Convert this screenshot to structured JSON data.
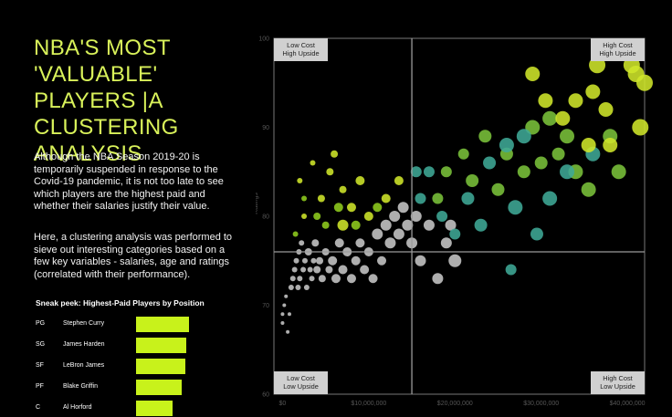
{
  "title": "NBA'S MOST 'VALUABLE' PLAYERS |A CLUSTERING ANALYSIS",
  "description": [
    "Although the NBA Season 2019-20 is temporarily suspended in response to the Covid-19 pandemic, it is not too late to see which players are the highest paid and whether their salaries justify their value.",
    "Here, a clustering analysis was performed to sieve out interesting categories based on a few key variables - salaries, age and ratings (correlated with their performance)."
  ],
  "sneak_peek": {
    "title": "Sneak peek: Highest-Paid Players by Position",
    "rows": [
      {
        "position": "PG",
        "player": "Stephen Curry",
        "value": 40231758
      },
      {
        "position": "SG",
        "player": "James Harden",
        "value": 38199000
      },
      {
        "position": "SF",
        "player": "LeBron James",
        "value": 37436858
      },
      {
        "position": "PF",
        "player": "Blake Griffin",
        "value": 34449964
      },
      {
        "position": "C",
        "player": "Al Horford",
        "value": 28000000
      }
    ],
    "bar_color": "#c8f21b"
  },
  "quadrants": {
    "top_left": [
      "Low Cost",
      "High Upside"
    ],
    "top_right": [
      "High Cost",
      "High Upside"
    ],
    "bottom_left": [
      "Low Cost",
      "Low Upside"
    ],
    "bottom_right": [
      "High Cost",
      "Low Upside"
    ]
  },
  "chart_data": {
    "type": "scatter",
    "title": "",
    "xlabel": "",
    "ylabel": "Ratings",
    "xlim": [
      -1000000,
      42000000
    ],
    "ylim": [
      60,
      100
    ],
    "x_ticks": [
      0,
      10000000,
      20000000,
      30000000,
      40000000
    ],
    "x_tick_labels": [
      "$0",
      "$10,000,000",
      "$20,000,000",
      "$30,000,000",
      "$40,000,000"
    ],
    "y_ticks": [
      60,
      70,
      80,
      90,
      100
    ],
    "reference_lines": {
      "x": 15000000,
      "y": 76
    },
    "grid": false,
    "cluster_colors": {
      "1": "#cfe62a",
      "2": "#8fcc1e",
      "3": "#3fa896",
      "4": "#7ac23a",
      "5": "#c6c6c6"
    },
    "points": [
      {
        "x": 0,
        "y": 68,
        "size": 2,
        "cluster": 5
      },
      {
        "x": 0,
        "y": 69,
        "size": 2,
        "cluster": 5
      },
      {
        "x": 200000,
        "y": 70,
        "size": 2,
        "cluster": 5
      },
      {
        "x": 400000,
        "y": 71,
        "size": 2,
        "cluster": 5
      },
      {
        "x": 600000,
        "y": 67,
        "size": 2,
        "cluster": 5
      },
      {
        "x": 800000,
        "y": 69,
        "size": 2,
        "cluster": 5
      },
      {
        "x": 1000000,
        "y": 72,
        "size": 3,
        "cluster": 5
      },
      {
        "x": 1200000,
        "y": 73,
        "size": 3,
        "cluster": 5
      },
      {
        "x": 1400000,
        "y": 74,
        "size": 3,
        "cluster": 5
      },
      {
        "x": 1600000,
        "y": 75,
        "size": 3,
        "cluster": 5
      },
      {
        "x": 1800000,
        "y": 72,
        "size": 3,
        "cluster": 5
      },
      {
        "x": 1900000,
        "y": 76,
        "size": 3,
        "cluster": 5
      },
      {
        "x": 2000000,
        "y": 73,
        "size": 3,
        "cluster": 5
      },
      {
        "x": 2200000,
        "y": 77,
        "size": 3,
        "cluster": 5
      },
      {
        "x": 2400000,
        "y": 74,
        "size": 3,
        "cluster": 5
      },
      {
        "x": 2600000,
        "y": 75,
        "size": 3,
        "cluster": 5
      },
      {
        "x": 2800000,
        "y": 72,
        "size": 3,
        "cluster": 5
      },
      {
        "x": 3000000,
        "y": 76,
        "size": 4,
        "cluster": 5
      },
      {
        "x": 3200000,
        "y": 74,
        "size": 3,
        "cluster": 5
      },
      {
        "x": 3400000,
        "y": 73,
        "size": 3,
        "cluster": 5
      },
      {
        "x": 3600000,
        "y": 75,
        "size": 3,
        "cluster": 5
      },
      {
        "x": 3800000,
        "y": 77,
        "size": 4,
        "cluster": 5
      },
      {
        "x": 4000000,
        "y": 74,
        "size": 4,
        "cluster": 5
      },
      {
        "x": 4300000,
        "y": 75,
        "size": 4,
        "cluster": 5
      },
      {
        "x": 4600000,
        "y": 73,
        "size": 4,
        "cluster": 5
      },
      {
        "x": 5000000,
        "y": 76,
        "size": 4,
        "cluster": 5
      },
      {
        "x": 5400000,
        "y": 74,
        "size": 4,
        "cluster": 5
      },
      {
        "x": 5800000,
        "y": 75,
        "size": 5,
        "cluster": 5
      },
      {
        "x": 6200000,
        "y": 73,
        "size": 5,
        "cluster": 5
      },
      {
        "x": 6600000,
        "y": 77,
        "size": 5,
        "cluster": 5
      },
      {
        "x": 7000000,
        "y": 74,
        "size": 5,
        "cluster": 5
      },
      {
        "x": 7500000,
        "y": 76,
        "size": 5,
        "cluster": 5
      },
      {
        "x": 8000000,
        "y": 73,
        "size": 5,
        "cluster": 5
      },
      {
        "x": 8500000,
        "y": 75,
        "size": 5,
        "cluster": 5
      },
      {
        "x": 9000000,
        "y": 77,
        "size": 5,
        "cluster": 5
      },
      {
        "x": 9500000,
        "y": 74,
        "size": 5,
        "cluster": 5
      },
      {
        "x": 10000000,
        "y": 76,
        "size": 5,
        "cluster": 5
      },
      {
        "x": 10500000,
        "y": 73,
        "size": 5,
        "cluster": 5
      },
      {
        "x": 11000000,
        "y": 78,
        "size": 6,
        "cluster": 5
      },
      {
        "x": 11500000,
        "y": 75,
        "size": 5,
        "cluster": 5
      },
      {
        "x": 12000000,
        "y": 79,
        "size": 6,
        "cluster": 5
      },
      {
        "x": 12500000,
        "y": 77,
        "size": 6,
        "cluster": 5
      },
      {
        "x": 13000000,
        "y": 80,
        "size": 6,
        "cluster": 5
      },
      {
        "x": 13500000,
        "y": 78,
        "size": 6,
        "cluster": 5
      },
      {
        "x": 14000000,
        "y": 81,
        "size": 6,
        "cluster": 5
      },
      {
        "x": 14500000,
        "y": 79,
        "size": 6,
        "cluster": 5
      },
      {
        "x": 15000000,
        "y": 77,
        "size": 6,
        "cluster": 5
      },
      {
        "x": 15500000,
        "y": 80,
        "size": 6,
        "cluster": 5
      },
      {
        "x": 16000000,
        "y": 75,
        "size": 6,
        "cluster": 5
      },
      {
        "x": 17000000,
        "y": 79,
        "size": 6,
        "cluster": 5
      },
      {
        "x": 18000000,
        "y": 73,
        "size": 6,
        "cluster": 5
      },
      {
        "x": 19000000,
        "y": 77,
        "size": 6,
        "cluster": 5
      },
      {
        "x": 20000000,
        "y": 75,
        "size": 7,
        "cluster": 5
      },
      {
        "x": 19500000,
        "y": 79,
        "size": 6,
        "cluster": 5
      },
      {
        "x": 2500000,
        "y": 80,
        "size": 3,
        "cluster": 1
      },
      {
        "x": 2000000,
        "y": 84,
        "size": 3,
        "cluster": 1
      },
      {
        "x": 3500000,
        "y": 86,
        "size": 3,
        "cluster": 1
      },
      {
        "x": 4500000,
        "y": 82,
        "size": 4,
        "cluster": 1
      },
      {
        "x": 5500000,
        "y": 85,
        "size": 4,
        "cluster": 1
      },
      {
        "x": 6000000,
        "y": 87,
        "size": 4,
        "cluster": 1
      },
      {
        "x": 7000000,
        "y": 83,
        "size": 4,
        "cluster": 1
      },
      {
        "x": 8000000,
        "y": 81,
        "size": 5,
        "cluster": 1
      },
      {
        "x": 9000000,
        "y": 84,
        "size": 5,
        "cluster": 1
      },
      {
        "x": 10000000,
        "y": 80,
        "size": 5,
        "cluster": 1
      },
      {
        "x": 12000000,
        "y": 82,
        "size": 5,
        "cluster": 1
      },
      {
        "x": 13500000,
        "y": 84,
        "size": 5,
        "cluster": 1
      },
      {
        "x": 7000000,
        "y": 79,
        "size": 6,
        "cluster": 1
      },
      {
        "x": 1500000,
        "y": 78,
        "size": 3,
        "cluster": 2
      },
      {
        "x": 2500000,
        "y": 82,
        "size": 3,
        "cluster": 2
      },
      {
        "x": 4000000,
        "y": 80,
        "size": 4,
        "cluster": 2
      },
      {
        "x": 5000000,
        "y": 79,
        "size": 4,
        "cluster": 2
      },
      {
        "x": 6500000,
        "y": 81,
        "size": 5,
        "cluster": 2
      },
      {
        "x": 8500000,
        "y": 79,
        "size": 5,
        "cluster": 2
      },
      {
        "x": 11000000,
        "y": 81,
        "size": 5,
        "cluster": 2
      },
      {
        "x": 18000000,
        "y": 82,
        "size": 6,
        "cluster": 4
      },
      {
        "x": 19000000,
        "y": 85,
        "size": 6,
        "cluster": 4
      },
      {
        "x": 21000000,
        "y": 87,
        "size": 6,
        "cluster": 4
      },
      {
        "x": 22000000,
        "y": 84,
        "size": 7,
        "cluster": 4
      },
      {
        "x": 23500000,
        "y": 89,
        "size": 7,
        "cluster": 4
      },
      {
        "x": 25000000,
        "y": 83,
        "size": 7,
        "cluster": 4
      },
      {
        "x": 26000000,
        "y": 87,
        "size": 7,
        "cluster": 4
      },
      {
        "x": 28000000,
        "y": 85,
        "size": 7,
        "cluster": 4
      },
      {
        "x": 29000000,
        "y": 90,
        "size": 8,
        "cluster": 4
      },
      {
        "x": 30000000,
        "y": 86,
        "size": 7,
        "cluster": 4
      },
      {
        "x": 31000000,
        "y": 91,
        "size": 8,
        "cluster": 4
      },
      {
        "x": 32000000,
        "y": 87,
        "size": 7,
        "cluster": 4
      },
      {
        "x": 33000000,
        "y": 89,
        "size": 8,
        "cluster": 4
      },
      {
        "x": 34000000,
        "y": 85,
        "size": 8,
        "cluster": 4
      },
      {
        "x": 35500000,
        "y": 83,
        "size": 8,
        "cluster": 4
      },
      {
        "x": 38000000,
        "y": 89,
        "size": 8,
        "cluster": 4
      },
      {
        "x": 39000000,
        "y": 85,
        "size": 8,
        "cluster": 4
      },
      {
        "x": 15500000,
        "y": 85,
        "size": 6,
        "cluster": 3
      },
      {
        "x": 17000000,
        "y": 85,
        "size": 6,
        "cluster": 3
      },
      {
        "x": 16000000,
        "y": 82,
        "size": 6,
        "cluster": 3
      },
      {
        "x": 18500000,
        "y": 80,
        "size": 6,
        "cluster": 3
      },
      {
        "x": 20000000,
        "y": 78,
        "size": 6,
        "cluster": 3
      },
      {
        "x": 21500000,
        "y": 82,
        "size": 7,
        "cluster": 3
      },
      {
        "x": 23000000,
        "y": 79,
        "size": 7,
        "cluster": 3
      },
      {
        "x": 24000000,
        "y": 86,
        "size": 7,
        "cluster": 3
      },
      {
        "x": 26000000,
        "y": 88,
        "size": 8,
        "cluster": 3
      },
      {
        "x": 27000000,
        "y": 81,
        "size": 8,
        "cluster": 3
      },
      {
        "x": 28000000,
        "y": 89,
        "size": 8,
        "cluster": 3
      },
      {
        "x": 29500000,
        "y": 78,
        "size": 7,
        "cluster": 3
      },
      {
        "x": 31000000,
        "y": 82,
        "size": 8,
        "cluster": 3
      },
      {
        "x": 33000000,
        "y": 85,
        "size": 8,
        "cluster": 3
      },
      {
        "x": 36000000,
        "y": 87,
        "size": 8,
        "cluster": 3
      },
      {
        "x": 26500000,
        "y": 74,
        "size": 6,
        "cluster": 3
      },
      {
        "x": 29000000,
        "y": 96,
        "size": 8,
        "cluster": 1
      },
      {
        "x": 30500000,
        "y": 93,
        "size": 8,
        "cluster": 1
      },
      {
        "x": 32500000,
        "y": 91,
        "size": 8,
        "cluster": 1
      },
      {
        "x": 34000000,
        "y": 93,
        "size": 8,
        "cluster": 1
      },
      {
        "x": 36000000,
        "y": 94,
        "size": 8,
        "cluster": 1
      },
      {
        "x": 37500000,
        "y": 92,
        "size": 8,
        "cluster": 1
      },
      {
        "x": 36500000,
        "y": 97,
        "size": 9,
        "cluster": 1
      },
      {
        "x": 40500000,
        "y": 97,
        "size": 9,
        "cluster": 1
      },
      {
        "x": 41000000,
        "y": 96,
        "size": 9,
        "cluster": 1
      },
      {
        "x": 42000000,
        "y": 95,
        "size": 9,
        "cluster": 1
      },
      {
        "x": 38000000,
        "y": 88,
        "size": 8,
        "cluster": 1
      },
      {
        "x": 35500000,
        "y": 88,
        "size": 8,
        "cluster": 1
      },
      {
        "x": 41500000,
        "y": 90,
        "size": 9,
        "cluster": 1
      }
    ]
  }
}
